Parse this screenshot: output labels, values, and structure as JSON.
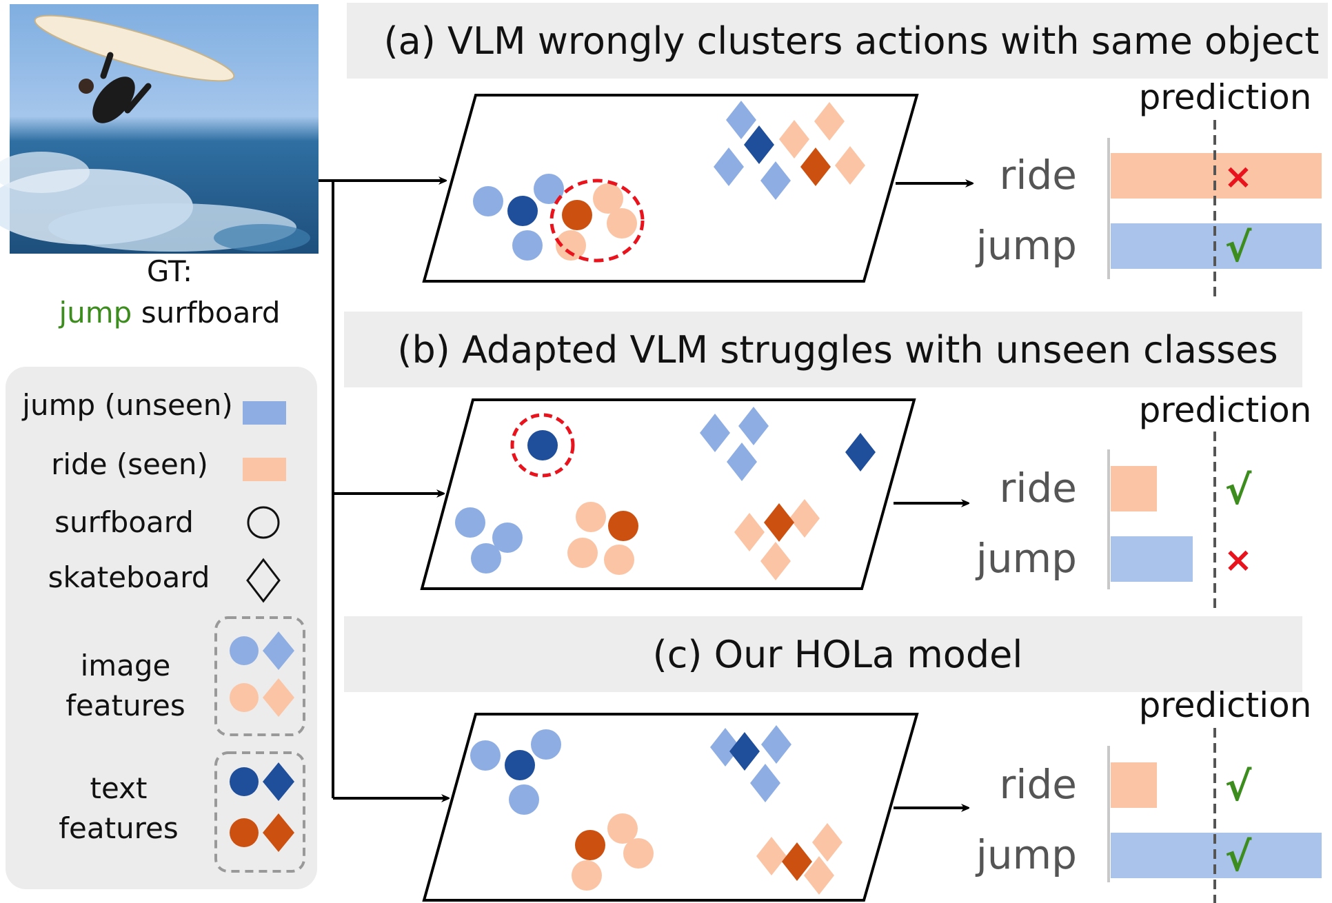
{
  "colors": {
    "jump_light": "#8EAEE3",
    "jump_dark": "#1F4E9A",
    "ride_light": "#FBC4A4",
    "ride_dark": "#CC5010",
    "bar_jump": "#A9C3EA",
    "bar_ride": "#FBC4A4",
    "highlight_ring": "#E8131C",
    "check": "#3C8C1E",
    "cross": "#E8131C",
    "banner_bg": "#EDEDED",
    "legend_bg": "#ECECEC",
    "gt_action": "#3C8C1E",
    "sky": "#8FB8E6",
    "sea": "#2E6E9E"
  },
  "photo": {
    "gt_label": "GT:",
    "gt_action": "jump",
    "gt_object": "surfboard"
  },
  "legend": {
    "jump": "jump (unseen)",
    "ride": "ride (seen)",
    "surfboard": "surfboard",
    "skateboard": "skateboard",
    "image_features_1": "image",
    "image_features_2": "features",
    "text_features_1": "text",
    "text_features_2": "features"
  },
  "panels": [
    {
      "title": "(a) VLM  wrongly clusters actions with same object",
      "prediction_label": "prediction",
      "rows": [
        {
          "label": "ride",
          "score": 1.0,
          "mark": "×"
        },
        {
          "label": "jump",
          "score": 1.0,
          "mark": "√"
        }
      ]
    },
    {
      "title": "(b) Adapted VLM struggles with unseen classes",
      "prediction_label": "prediction",
      "rows": [
        {
          "label": "ride",
          "score": 0.22,
          "mark": "√"
        },
        {
          "label": "jump",
          "score": 0.39,
          "mark": "×"
        }
      ]
    },
    {
      "title": "(c) Our HOLa model",
      "prediction_label": "prediction",
      "rows": [
        {
          "label": "ride",
          "score": 0.22,
          "mark": "√"
        },
        {
          "label": "jump",
          "score": 1.0,
          "mark": "√"
        }
      ]
    }
  ]
}
